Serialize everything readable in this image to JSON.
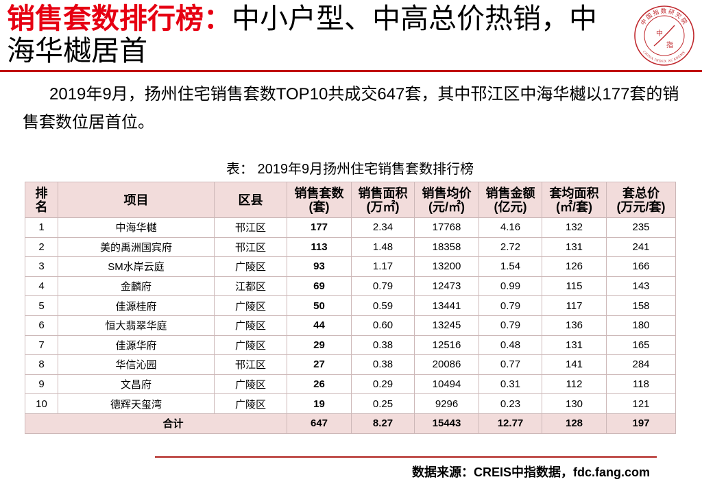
{
  "title": {
    "highlight": "销售套数排行榜：",
    "rest": "中小户型、中高总价热销，中海华樾居首"
  },
  "logo": {
    "icon": "china-index-academy-seal",
    "arc_top": "中国指数研究院",
    "arc_bottom": "CHINA INDEX ACADEMY",
    "center_1": "中",
    "center_2": "指"
  },
  "summary": "2019年9月，扬州住宅销售套数TOP10共成交647套，其中邗江区中海华樾以177套的销售套数位居首位。",
  "table": {
    "caption": "表： 2019年9月扬州住宅销售套数排行榜",
    "headers": [
      {
        "line1": "排",
        "line2": "名"
      },
      {
        "line1": "项目"
      },
      {
        "line1": "区县"
      },
      {
        "line1": "销售套数",
        "line2": "(套)"
      },
      {
        "line1": "销售面积",
        "line2": "(万㎡)"
      },
      {
        "line1": "销售均价",
        "line2": "(元/㎡)"
      },
      {
        "line1": "销售金额",
        "line2": "(亿元)"
      },
      {
        "line1": "套均面积",
        "line2": "(㎡/套)"
      },
      {
        "line1": "套总价",
        "line2": "(万元/套)"
      }
    ],
    "rows": [
      [
        "1",
        "中海华樾",
        "邗江区",
        "177",
        "2.34",
        "17768",
        "4.16",
        "132",
        "235"
      ],
      [
        "2",
        "美的禹洲国宾府",
        "邗江区",
        "113",
        "1.48",
        "18358",
        "2.72",
        "131",
        "241"
      ],
      [
        "3",
        "SM水岸云庭",
        "广陵区",
        "93",
        "1.17",
        "13200",
        "1.54",
        "126",
        "166"
      ],
      [
        "4",
        "金麟府",
        "江都区",
        "69",
        "0.79",
        "12473",
        "0.99",
        "115",
        "143"
      ],
      [
        "5",
        "佳源桂府",
        "广陵区",
        "50",
        "0.59",
        "13441",
        "0.79",
        "117",
        "158"
      ],
      [
        "6",
        "恒大翡翠华庭",
        "广陵区",
        "44",
        "0.60",
        "13245",
        "0.79",
        "136",
        "180"
      ],
      [
        "7",
        "佳源华府",
        "广陵区",
        "29",
        "0.38",
        "12516",
        "0.48",
        "131",
        "165"
      ],
      [
        "8",
        "华信沁园",
        "邗江区",
        "27",
        "0.38",
        "20086",
        "0.77",
        "141",
        "284"
      ],
      [
        "9",
        "文昌府",
        "广陵区",
        "26",
        "0.29",
        "10494",
        "0.31",
        "112",
        "118"
      ],
      [
        "10",
        "德辉天玺湾",
        "广陵区",
        "19",
        "0.25",
        "9296",
        "0.23",
        "130",
        "121"
      ]
    ],
    "total": {
      "label": "合计",
      "values": [
        "647",
        "8.27",
        "15443",
        "12.77",
        "128",
        "197"
      ]
    }
  },
  "source": "数据来源：CREIS中指数据，fdc.fang.com",
  "colors": {
    "title_red": "#e60012",
    "title_rule": "#c00000",
    "table_header_bg": "#f2dcdb",
    "table_border": "#cdb8b8",
    "footer_rule": "#c0504d",
    "logo_red": "#c0282d"
  }
}
